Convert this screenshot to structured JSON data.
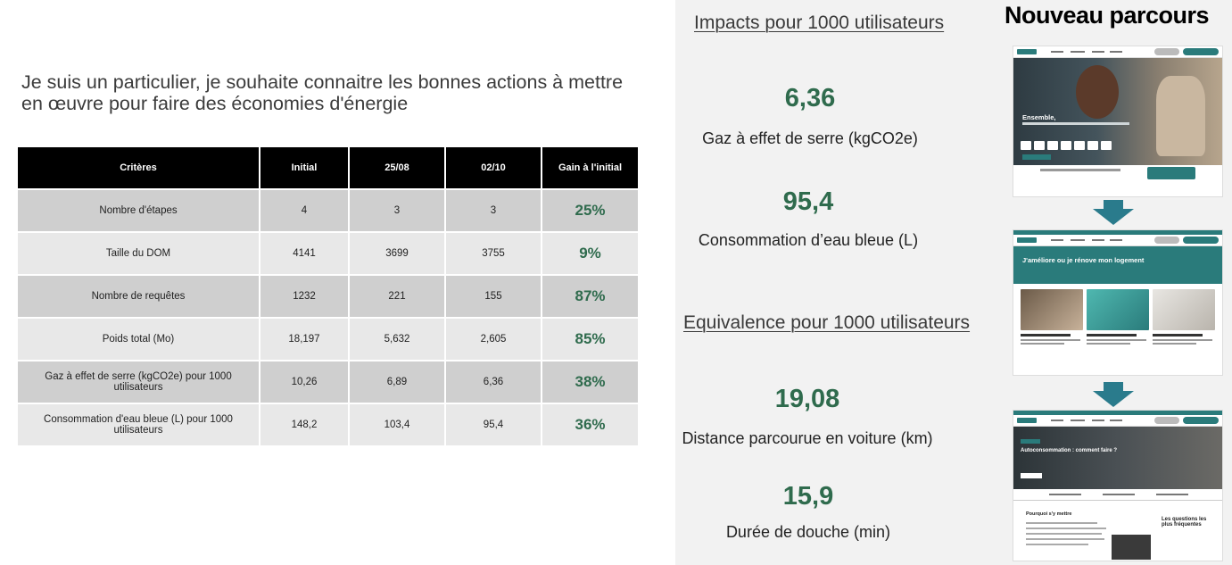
{
  "heading": {
    "line1": "Je suis un particulier, je souhaite connaitre les bonnes actions à mettre",
    "line2": "en œuvre pour faire des économies d'énergie"
  },
  "table": {
    "headers": [
      "Critères",
      "Initial",
      "25/08",
      "02/10",
      "Gain à l'initial"
    ],
    "rows": [
      {
        "criterion": "Nombre d'étapes",
        "initial": "4",
        "d2508": "3",
        "d0210": "3",
        "gain": "25%"
      },
      {
        "criterion": "Taille du DOM",
        "initial": "4141",
        "d2508": "3699",
        "d0210": "3755",
        "gain": "9%"
      },
      {
        "criterion": "Nombre de requêtes",
        "initial": "1232",
        "d2508": "221",
        "d0210": "155",
        "gain": "87%"
      },
      {
        "criterion": "Poids total (Mo)",
        "initial": "18,197",
        "d2508": "5,632",
        "d0210": "2,605",
        "gain": "85%"
      },
      {
        "criterion": "Gaz à effet de serre (kgCO2e) pour 1000 utilisateurs",
        "initial": "10,26",
        "d2508": "6,89",
        "d0210": "6,36",
        "gain": "38%"
      },
      {
        "criterion": "Consommation d'eau bleue (L) pour 1000 utilisateurs",
        "initial": "148,2",
        "d2508": "103,4",
        "d0210": "95,4",
        "gain": "36%"
      }
    ]
  },
  "impacts": {
    "title": "Impacts pour 1000 utilisateurs",
    "ghg_value": "6,36",
    "ghg_label": "Gaz à effet de serre (kgCO2e)",
    "water_value": "95,4",
    "water_label": "Consommation d’eau bleue (L)"
  },
  "equivalence": {
    "title": "Equivalence pour 1000 utilisateurs",
    "distance_value": "19,08",
    "distance_label": "Distance parcourue en voiture (km)",
    "shower_value": "15,9",
    "shower_label": "Durée de douche (min)"
  },
  "new_journey": {
    "title": "Nouveau parcours",
    "screen1_text": "Ensemble,",
    "screen2_text": "J'améliore ou je rénove mon logement",
    "screen3_text": "Autoconsommation : comment faire ?",
    "screen3_heading": "Pourquoi s'y mettre",
    "screen3_faq": "Les questions les plus fréquentes"
  },
  "colors": {
    "accent_green": "#2f6b4d",
    "teal": "#2a7b7b",
    "header_black": "#000000"
  }
}
